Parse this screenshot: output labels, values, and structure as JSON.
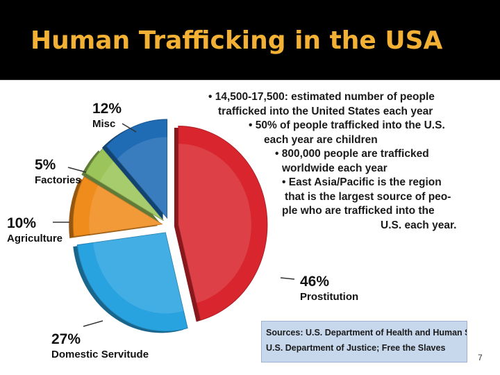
{
  "title": "Human Trafficking in the USA",
  "chart_data": {
    "type": "pie",
    "slices": [
      {
        "label": "Prostitution",
        "value": 46,
        "display": "46%",
        "color": "#d9262e"
      },
      {
        "label": "Domestic Servitude",
        "value": 27,
        "display": "27%",
        "color": "#29a3e0"
      },
      {
        "label": "Agriculture",
        "value": 10,
        "display": "10%",
        "color": "#ef8c1c"
      },
      {
        "label": "Factories",
        "value": 5,
        "display": "5%",
        "color": "#9bc55a"
      },
      {
        "label": "Misc",
        "value": 12,
        "display": "12%",
        "color": "#1f6cb5"
      }
    ]
  },
  "bullets": [
    {
      "line1": "• 14,500-17,500: estimated number of people",
      "line2": "trafficked into the United States each year"
    },
    {
      "line1": "• 50% of people trafficked into the U.S.",
      "line2": "each year are children"
    },
    {
      "line1": "• 800,000  people  are  trafficked",
      "line2": "worldwide each year"
    },
    {
      "line1": "• East Asia/Pacific is the region",
      "line2": "that is the largest source of peo-",
      "line3": "ple  who  are  trafficked  into  the",
      "line4": "U.S. each year."
    }
  ],
  "sources": {
    "line1": "Sources:  U.S. Department of Health and Human Services",
    "line2": "U.S. Department of Justice; Free the Slaves"
  },
  "slide_number": "7"
}
